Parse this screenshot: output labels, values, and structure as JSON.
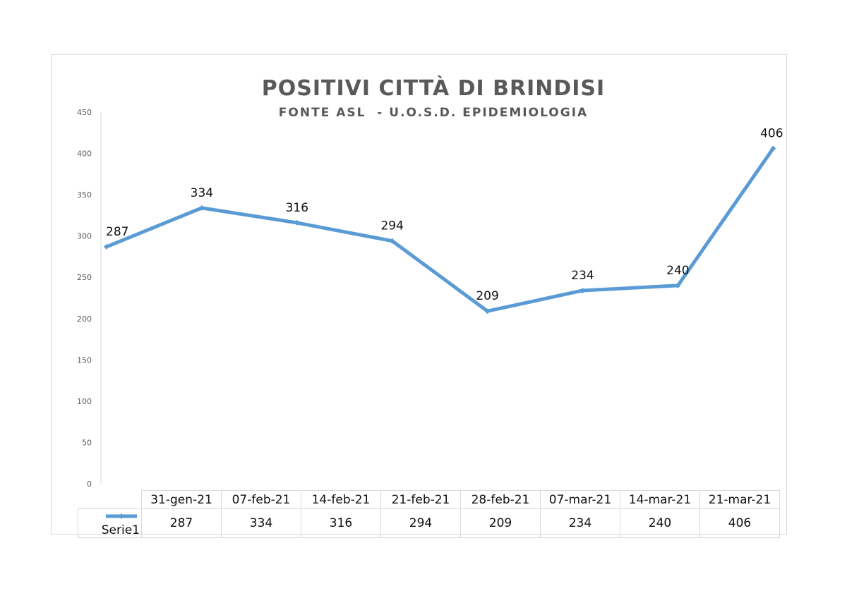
{
  "chart_data": {
    "type": "line",
    "title": "POSITIVI CITTÀ DI BRINDISI",
    "subtitle": "FONTE ASL  - U.O.S.D. EPIDEMIOLOGIA",
    "categories": [
      "31-gen-21",
      "07-feb-21",
      "14-feb-21",
      "21-feb-21",
      "28-feb-21",
      "07-mar-21",
      "14-mar-21",
      "21-mar-21"
    ],
    "series": [
      {
        "name": "Serie1",
        "values": [
          287,
          334,
          316,
          294,
          209,
          234,
          240,
          406
        ]
      }
    ],
    "ylim": [
      0,
      450
    ],
    "yticks": [
      0,
      50,
      100,
      150,
      200,
      250,
      300,
      350,
      400,
      450
    ],
    "grid": false,
    "legend": "data-table",
    "color": "#5b9bd5"
  }
}
